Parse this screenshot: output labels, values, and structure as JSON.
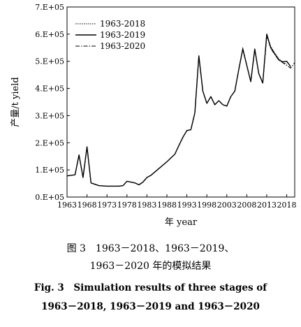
{
  "chart_data": {
    "type": "line",
    "title": "",
    "xlabel": "年 year",
    "ylabel": "产量/t yield",
    "xlim": [
      1963,
      2020
    ],
    "ylim": [
      0,
      700000
    ],
    "x_ticks": [
      1963,
      1968,
      1973,
      1978,
      1983,
      1988,
      1993,
      1998,
      2003,
      2008,
      2013,
      2018
    ],
    "y_ticks": [
      0,
      100000,
      200000,
      300000,
      400000,
      500000,
      600000,
      700000
    ],
    "y_tick_labels": [
      "0.E+05",
      "1.E+05",
      "2.E+05",
      "3.E+05",
      "4.E+05",
      "5.E+05",
      "6.E+05",
      "7.E+05"
    ],
    "grid": false,
    "legend_position": "top-left",
    "series": [
      {
        "name": "1963-2018",
        "style": "dotted",
        "x": [
          1963,
          1965,
          1966,
          1967,
          1968,
          1969,
          1971,
          1973,
          1976,
          1977,
          1978,
          1980,
          1981,
          1982,
          1983,
          1984,
          1986,
          1988,
          1990,
          1991,
          1992,
          1993,
          1994,
          1995,
          1996,
          1997,
          1998,
          1999,
          2000,
          2001,
          2002,
          2003,
          2004,
          2005,
          2006,
          2007,
          2008,
          2009,
          2010,
          2011,
          2012,
          2013,
          2014,
          2015,
          2016,
          2017,
          2018
        ],
        "y": [
          78000,
          82000,
          155000,
          72000,
          185000,
          52000,
          42000,
          40000,
          40000,
          42000,
          58000,
          52000,
          45000,
          55000,
          72000,
          80000,
          105000,
          130000,
          158000,
          190000,
          220000,
          245000,
          248000,
          310000,
          520000,
          390000,
          345000,
          370000,
          340000,
          355000,
          340000,
          335000,
          370000,
          390000,
          470000,
          550000,
          485000,
          425000,
          545000,
          455000,
          420000,
          590000,
          555000,
          530000,
          510000,
          495000,
          490000
        ]
      },
      {
        "name": "1963-2019",
        "style": "solid",
        "x": [
          1963,
          1965,
          1966,
          1967,
          1968,
          1969,
          1971,
          1973,
          1976,
          1977,
          1978,
          1980,
          1981,
          1982,
          1983,
          1984,
          1986,
          1988,
          1990,
          1991,
          1992,
          1993,
          1994,
          1995,
          1996,
          1997,
          1998,
          1999,
          2000,
          2001,
          2002,
          2003,
          2004,
          2005,
          2006,
          2007,
          2008,
          2009,
          2010,
          2011,
          2012,
          2013,
          2014,
          2015,
          2016,
          2017,
          2018,
          2019
        ],
        "y": [
          78000,
          82000,
          155000,
          72000,
          185000,
          52000,
          42000,
          40000,
          40000,
          42000,
          58000,
          52000,
          45000,
          55000,
          72000,
          80000,
          105000,
          130000,
          158000,
          190000,
          220000,
          245000,
          248000,
          310000,
          520000,
          390000,
          345000,
          370000,
          340000,
          355000,
          340000,
          335000,
          370000,
          390000,
          470000,
          545000,
          485000,
          425000,
          545000,
          455000,
          420000,
          600000,
          550000,
          528000,
          505000,
          498000,
          500000,
          480000
        ]
      },
      {
        "name": "1963-2020",
        "style": "dash-dot",
        "x": [
          1963,
          1965,
          1966,
          1967,
          1968,
          1969,
          1971,
          1973,
          1976,
          1977,
          1978,
          1980,
          1981,
          1982,
          1983,
          1984,
          1986,
          1988,
          1990,
          1991,
          1992,
          1993,
          1994,
          1995,
          1996,
          1997,
          1998,
          1999,
          2000,
          2001,
          2002,
          2003,
          2004,
          2005,
          2006,
          2007,
          2008,
          2009,
          2010,
          2011,
          2012,
          2013,
          2014,
          2015,
          2016,
          2017,
          2018,
          2019,
          2020
        ],
        "y": [
          78000,
          82000,
          155000,
          72000,
          185000,
          52000,
          42000,
          40000,
          40000,
          42000,
          58000,
          52000,
          45000,
          55000,
          72000,
          80000,
          105000,
          130000,
          158000,
          190000,
          220000,
          245000,
          248000,
          310000,
          520000,
          390000,
          345000,
          370000,
          340000,
          355000,
          340000,
          335000,
          370000,
          390000,
          470000,
          545000,
          485000,
          425000,
          545000,
          455000,
          420000,
          595000,
          548000,
          525000,
          505000,
          495000,
          485000,
          475000,
          495000
        ]
      }
    ]
  },
  "caption": {
    "cn_line1": "图 3　1963－2018、1963－2019、",
    "cn_line2": "1963－2020 年的模拟结果",
    "en_line1": "Fig. 3　Simulation results of three stages of",
    "en_line2": "1963－2018, 1963－2019 and 1963－2020"
  }
}
